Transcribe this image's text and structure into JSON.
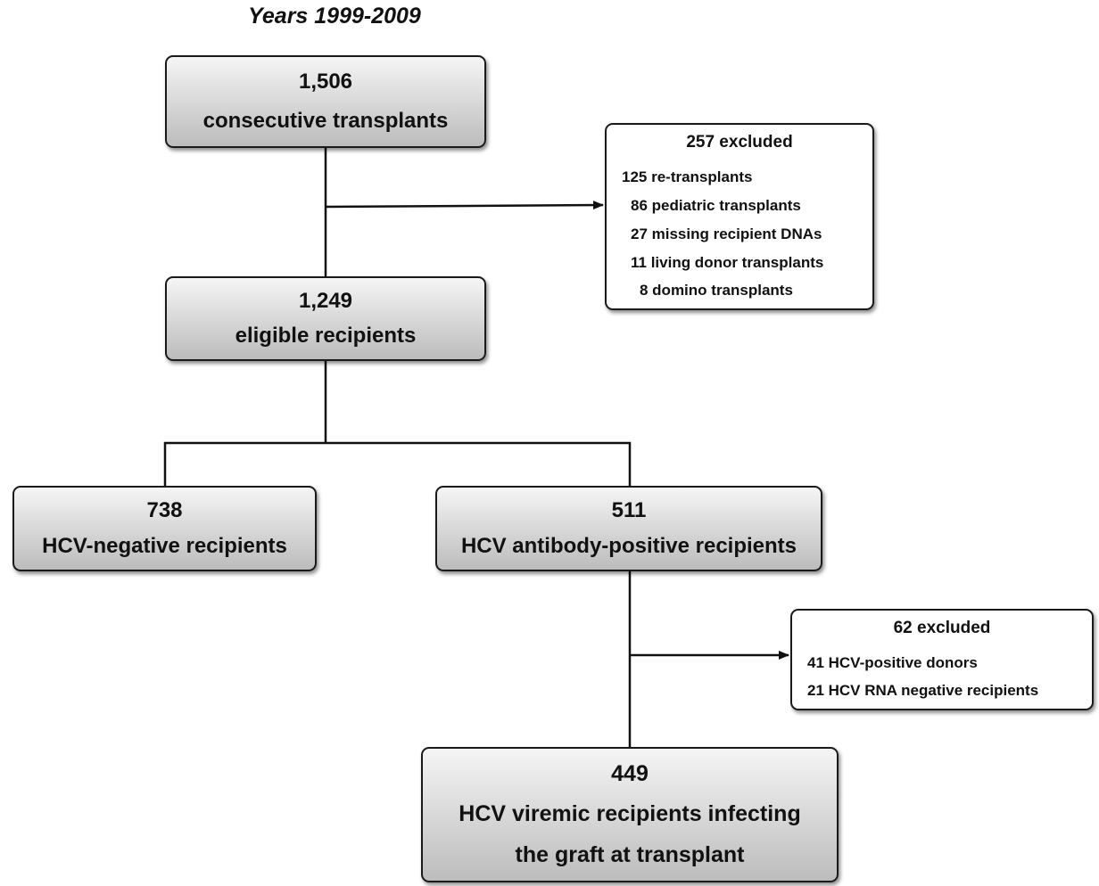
{
  "title": "Years 1999-2009",
  "nodes": [
    {
      "count": "1,506",
      "lines": [
        "consecutive transplants"
      ]
    },
    {
      "count": "1,249",
      "lines": [
        "eligible recipients"
      ]
    },
    {
      "count": "738",
      "lines": [
        "HCV-negative recipients"
      ]
    },
    {
      "count": "511",
      "lines": [
        "HCV antibody-positive recipients"
      ]
    },
    {
      "count": "449",
      "lines": [
        "HCV viremic recipients infecting",
        "the graft at transplant"
      ]
    }
  ],
  "exclusions": [
    {
      "header": "257 excluded",
      "items": [
        "125 re-transplants",
        "86 pediatric transplants",
        "27 missing recipient DNAs",
        "11 living donor transplants",
        "8 domino transplants"
      ]
    },
    {
      "header": "62 excluded",
      "items": [
        "41 HCV-positive donors",
        "21 HCV RNA negative recipients"
      ]
    }
  ]
}
